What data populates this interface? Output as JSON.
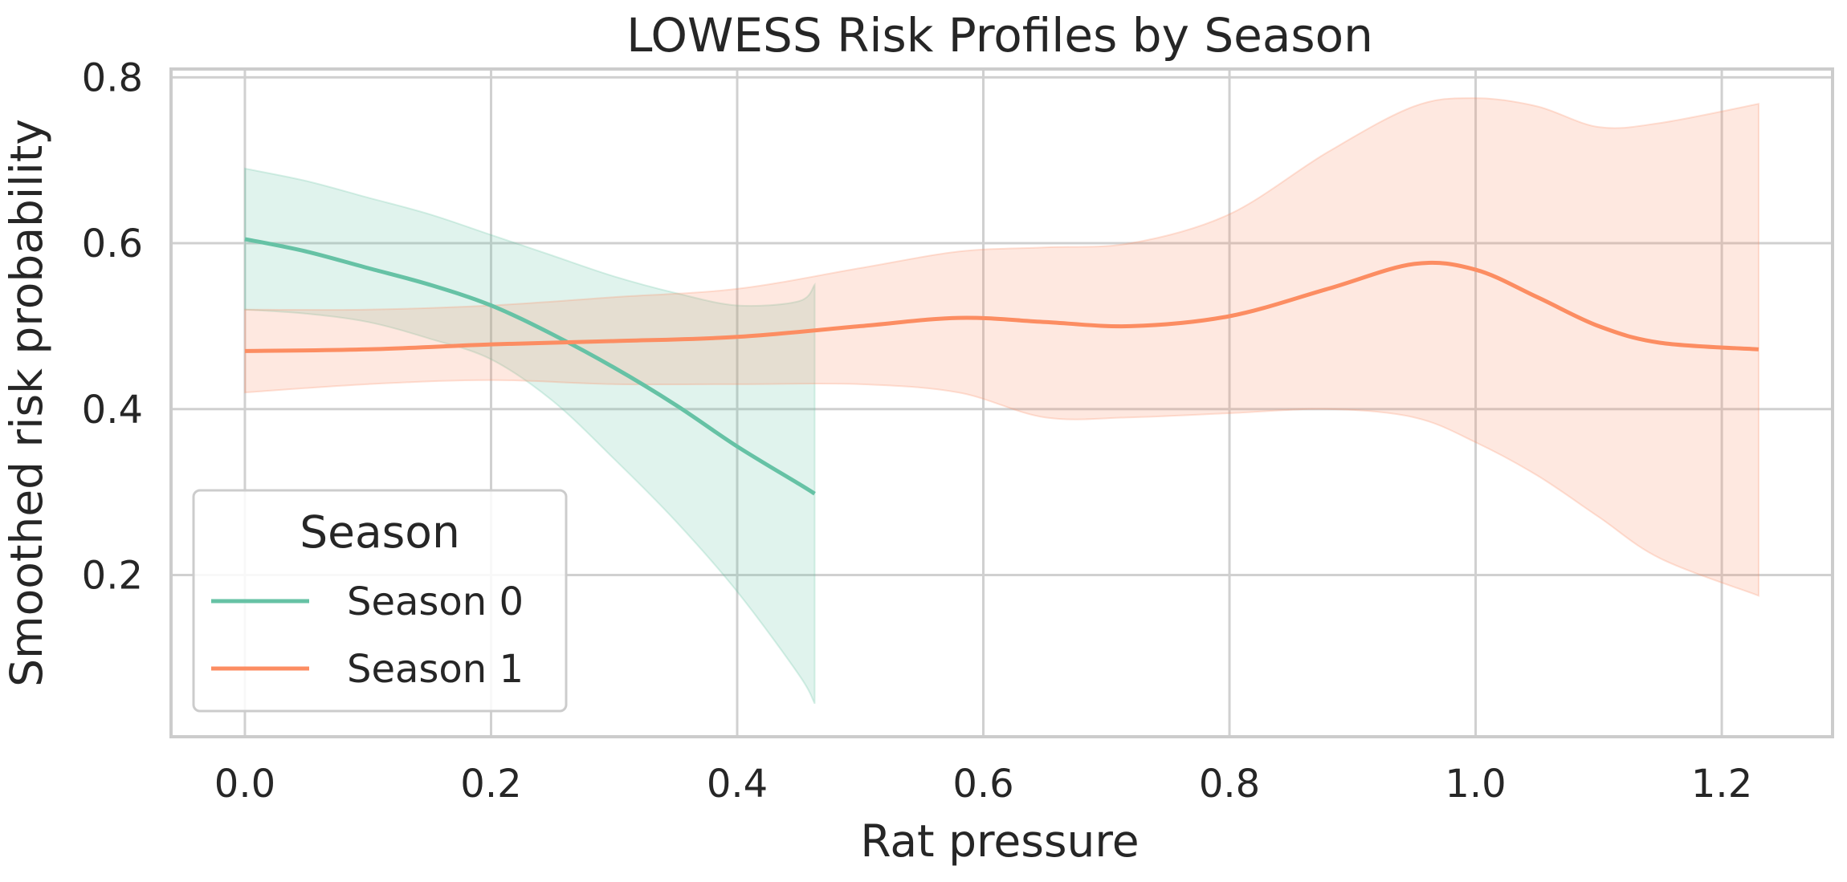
{
  "chart_data": {
    "type": "line",
    "title": "LOWESS Risk Profiles by Season",
    "xlabel": "Rat pressure",
    "ylabel": "Smoothed risk probability",
    "xlim": [
      -0.06,
      1.29
    ],
    "ylim": [
      0.005,
      0.81
    ],
    "xticks": [
      0.0,
      0.2,
      0.4,
      0.6,
      0.8,
      1.0,
      1.2
    ],
    "xtick_labels": [
      "0.0",
      "0.2",
      "0.4",
      "0.6",
      "0.8",
      "1.0",
      "1.2"
    ],
    "yticks": [
      0.2,
      0.4,
      0.6,
      0.8
    ],
    "ytick_labels": [
      "0.2",
      "0.4",
      "0.6",
      "0.8"
    ],
    "grid": true,
    "legend": {
      "title": "Season",
      "placement": "lower-left"
    },
    "series": [
      {
        "name": "Season 0",
        "color": "#66c2a5",
        "x": [
          0.0,
          0.05,
          0.1,
          0.15,
          0.2,
          0.25,
          0.3,
          0.35,
          0.4,
          0.45,
          0.463
        ],
        "y": [
          0.605,
          0.59,
          0.57,
          0.55,
          0.525,
          0.49,
          0.45,
          0.405,
          0.355,
          0.31,
          0.298
        ],
        "lower": [
          0.52,
          0.515,
          0.505,
          0.485,
          0.46,
          0.41,
          0.34,
          0.265,
          0.18,
          0.08,
          0.045
        ],
        "upper": [
          0.69,
          0.675,
          0.655,
          0.635,
          0.61,
          0.585,
          0.56,
          0.54,
          0.525,
          0.53,
          0.55
        ]
      },
      {
        "name": "Season 1",
        "color": "#fc8d62",
        "x": [
          0.0,
          0.1,
          0.2,
          0.3,
          0.4,
          0.5,
          0.58,
          0.65,
          0.72,
          0.8,
          0.88,
          0.95,
          1.0,
          1.05,
          1.1,
          1.15,
          1.23
        ],
        "y": [
          0.47,
          0.472,
          0.478,
          0.482,
          0.487,
          0.5,
          0.51,
          0.505,
          0.5,
          0.512,
          0.545,
          0.575,
          0.568,
          0.535,
          0.5,
          0.48,
          0.472
        ],
        "lower": [
          0.42,
          0.43,
          0.435,
          0.43,
          0.43,
          0.43,
          0.42,
          0.39,
          0.39,
          0.395,
          0.4,
          0.39,
          0.36,
          0.32,
          0.27,
          0.22,
          0.175
        ],
        "upper": [
          0.52,
          0.52,
          0.525,
          0.535,
          0.545,
          0.57,
          0.59,
          0.595,
          0.6,
          0.635,
          0.71,
          0.765,
          0.775,
          0.765,
          0.74,
          0.745,
          0.768
        ]
      }
    ]
  }
}
